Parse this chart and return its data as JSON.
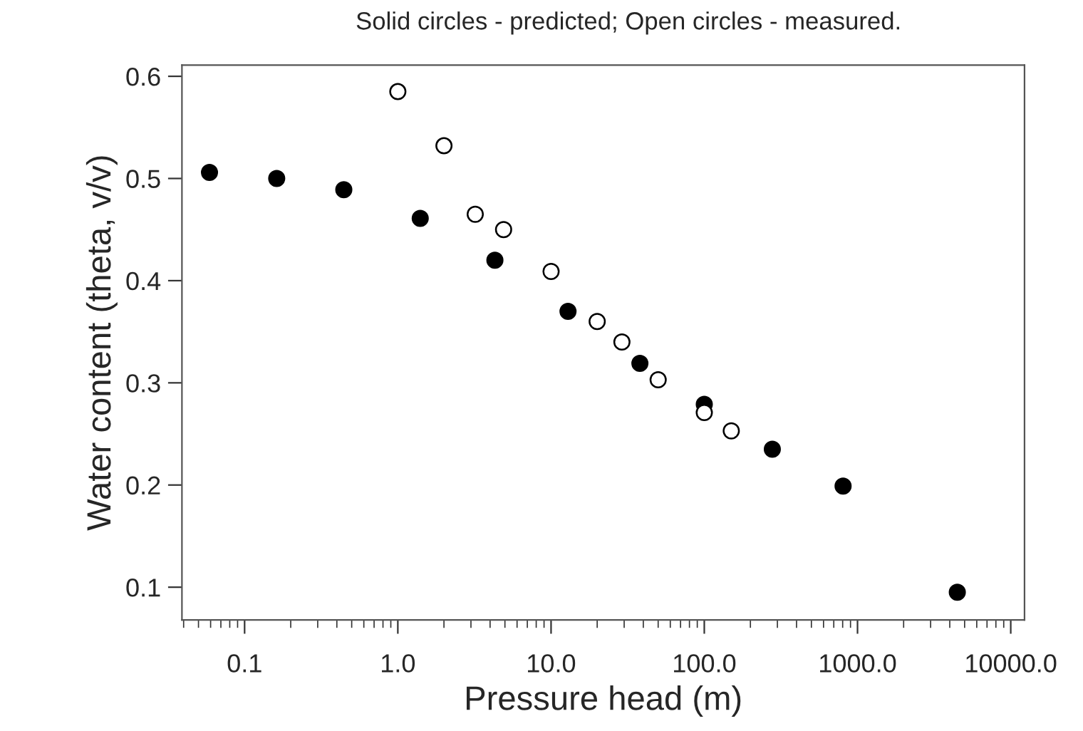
{
  "chart_data": {
    "type": "scatter",
    "title": "Solid circles - predicted; Open circles - measured.",
    "xlabel": "Pressure head (m)",
    "ylabel": "Water content (theta, v/v)",
    "log": "x",
    "marker": "circle",
    "grid": false,
    "xlim": [
      0.039,
      12300
    ],
    "ylim": [
      0.068,
      0.611
    ],
    "xticks": [
      {
        "value": 0.1,
        "label": "0.1"
      },
      {
        "value": 1,
        "label": "1.0"
      },
      {
        "value": 10,
        "label": "10.0"
      },
      {
        "value": 100,
        "label": "100.0"
      },
      {
        "value": 1000,
        "label": "1000.0"
      },
      {
        "value": 10000,
        "label": "10000.0"
      }
    ],
    "yticks": [
      0.1,
      0.2,
      0.3,
      0.4,
      0.5,
      0.6
    ],
    "series": [
      {
        "color": "#000000",
        "x": [
          0.059,
          0.162,
          0.444,
          1.4,
          4.3,
          12.9,
          38,
          100,
          278,
          805,
          4480
        ],
        "values": [
          0.506,
          0.5,
          0.489,
          0.461,
          0.42,
          0.37,
          0.319,
          0.279,
          0.235,
          0.199,
          0.095
        ]
      },
      {
        "color": "#ffffff",
        "x": [
          1.0,
          2.0,
          3.2,
          4.9,
          10,
          20,
          29,
          50,
          100,
          150
        ],
        "values": [
          0.585,
          0.532,
          0.465,
          0.45,
          0.409,
          0.36,
          0.34,
          0.303,
          0.271,
          0.253
        ]
      }
    ]
  }
}
